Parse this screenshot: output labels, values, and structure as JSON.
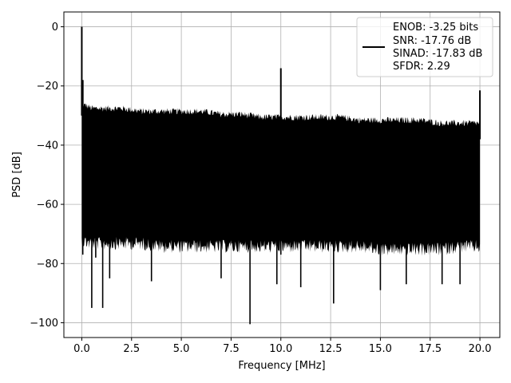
{
  "chart_data": {
    "type": "line",
    "title": "",
    "xlabel": "Frequency [MHz]",
    "ylabel": "PSD [dB]",
    "xlim": [
      -0.9,
      21.0
    ],
    "ylim": [
      -105,
      5
    ],
    "xticks": [
      0.0,
      2.5,
      5.0,
      7.5,
      10.0,
      12.5,
      15.0,
      17.5,
      20.0
    ],
    "xtick_labels": [
      "0.0",
      "2.5",
      "5.0",
      "7.5",
      "10.0",
      "12.5",
      "15.0",
      "17.5",
      "20.0"
    ],
    "yticks": [
      0,
      -20,
      -40,
      -60,
      -80,
      -100
    ],
    "ytick_labels": [
      "0",
      "−20",
      "−40",
      "−60",
      "−80",
      "−100"
    ],
    "grid": true,
    "legend_position": "top-right",
    "series": [
      {
        "name": "",
        "color": "#000000",
        "upper_envelope": {
          "x": [
            0.0,
            0.1,
            0.2,
            0.5,
            1.0,
            2.0,
            3.0,
            4.0,
            5.0,
            6.0,
            7.0,
            8.0,
            9.0,
            10.5,
            12.0,
            13.0,
            14.0,
            15.0,
            16.0,
            17.0,
            18.0,
            19.0,
            20.0
          ],
          "y": [
            -25,
            -27,
            -27,
            -28,
            -28,
            -28,
            -29,
            -29,
            -29,
            -29,
            -30,
            -30,
            -31,
            -31,
            -31,
            -31,
            -32,
            -32,
            -32,
            -32,
            -33,
            -33,
            -33
          ]
        },
        "lower_envelope": {
          "x": [
            0.0,
            0.5,
            1.0,
            2.0,
            3.0,
            4.0,
            5.0,
            6.0,
            7.0,
            8.0,
            9.0,
            10.0,
            11.0,
            12.0,
            13.0,
            14.0,
            15.0,
            16.0,
            17.0,
            18.0,
            19.0,
            20.0
          ],
          "y": [
            -70,
            -71,
            -71,
            -71,
            -71,
            -72,
            -72,
            -72,
            -72,
            -72,
            -72,
            -72,
            -72,
            -72,
            -72,
            -72,
            -73,
            -73,
            -73,
            -73,
            -72,
            -72
          ]
        },
        "peaks": [
          {
            "x": 0.0,
            "y": 0
          },
          {
            "x": 0.05,
            "y": -18
          },
          {
            "x": 10.0,
            "y": -14
          },
          {
            "x": 20.0,
            "y": -21.5
          }
        ],
        "dips": [
          {
            "x": 0.5,
            "y": -95
          },
          {
            "x": 1.05,
            "y": -95
          },
          {
            "x": 8.45,
            "y": -100.5
          },
          {
            "x": 12.65,
            "y": -93.5
          },
          {
            "x": 10.0,
            "y": -77
          },
          {
            "x": 0.05,
            "y": -77
          },
          {
            "x": 0.7,
            "y": -78
          },
          {
            "x": 1.4,
            "y": -85
          },
          {
            "x": 3.5,
            "y": -86
          },
          {
            "x": 7.0,
            "y": -85
          },
          {
            "x": 9.8,
            "y": -87
          },
          {
            "x": 11.0,
            "y": -88
          },
          {
            "x": 15.0,
            "y": -89
          },
          {
            "x": 16.3,
            "y": -87
          },
          {
            "x": 18.1,
            "y": -87
          },
          {
            "x": 19.0,
            "y": -87
          }
        ]
      }
    ]
  },
  "legend": {
    "lines": [
      "ENOB: -3.25 bits",
      "SNR: -17.76 dB",
      "SINAD: -17.83 dB",
      "SFDR: 2.29"
    ]
  }
}
